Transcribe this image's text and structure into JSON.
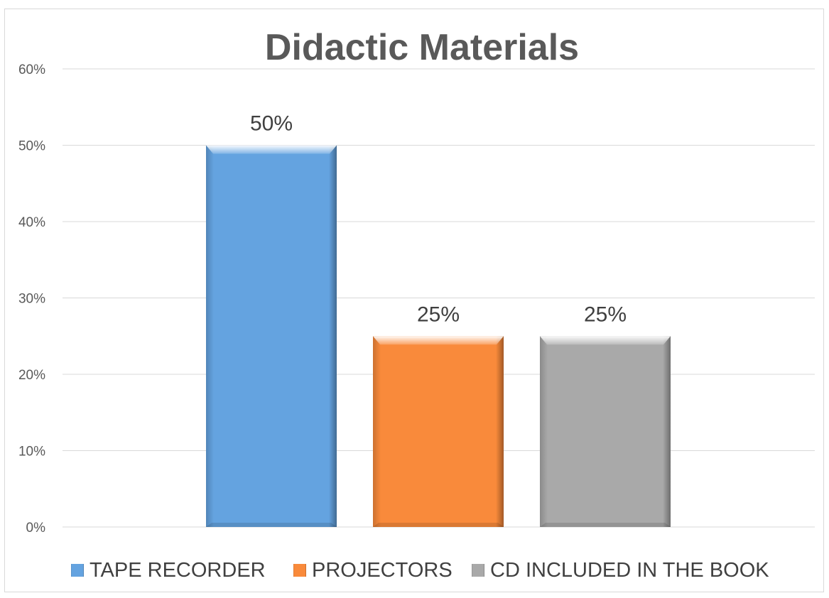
{
  "chart_data": {
    "type": "bar",
    "title": "Didactic Materials",
    "categories": [
      "TAPE RECORDER",
      "PROJECTORS",
      "CD INCLUDED IN THE BOOK"
    ],
    "series": [
      {
        "values": [
          0.5,
          0.25,
          0.25
        ]
      }
    ],
    "data_labels": [
      "50%",
      "25%",
      "25%"
    ],
    "y_ticks": [
      "0%",
      "10%",
      "20%",
      "30%",
      "40%",
      "50%",
      "60%"
    ],
    "ylim": [
      0,
      0.6
    ],
    "grid": true,
    "legend": "bottom",
    "colors": [
      "#64a3e0",
      "#f98a3b",
      "#a9a9a9"
    ]
  }
}
